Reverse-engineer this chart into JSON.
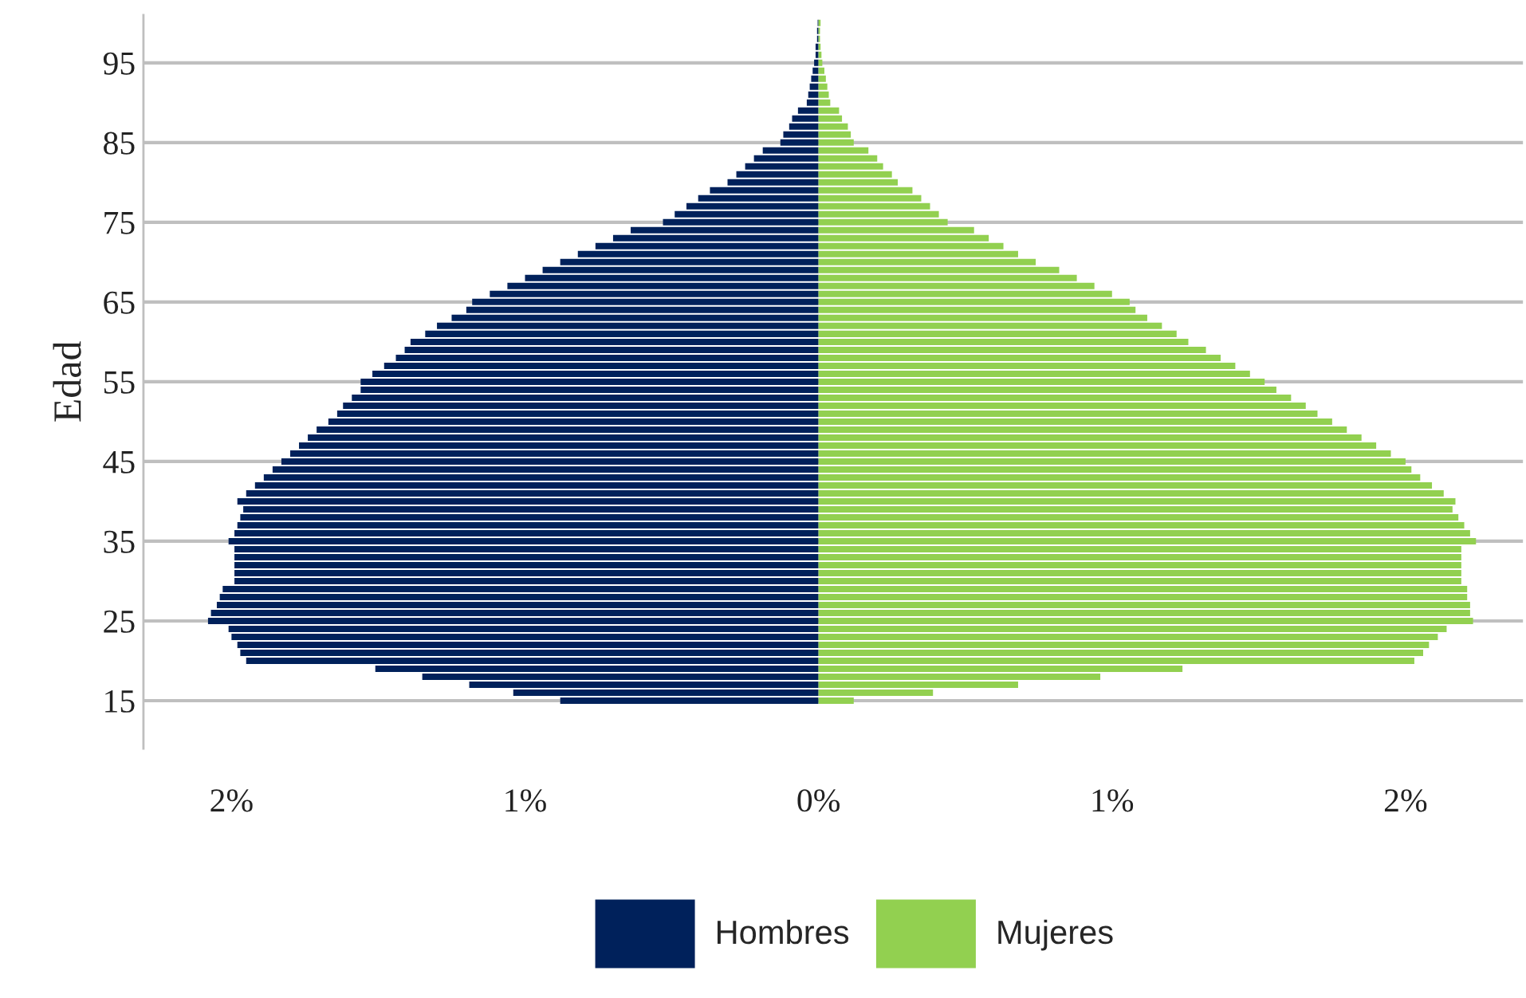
{
  "chart_data": {
    "type": "bar",
    "orientation": "horizontal",
    "ylabel": "Edad",
    "x": [
      15,
      16,
      17,
      18,
      19,
      20,
      21,
      22,
      23,
      24,
      25,
      26,
      27,
      28,
      29,
      30,
      31,
      32,
      33,
      34,
      35,
      36,
      37,
      38,
      39,
      40,
      41,
      42,
      43,
      44,
      45,
      46,
      47,
      48,
      49,
      50,
      51,
      52,
      53,
      54,
      55,
      56,
      57,
      58,
      59,
      60,
      61,
      62,
      63,
      64,
      65,
      66,
      67,
      68,
      69,
      70,
      71,
      72,
      73,
      74,
      75,
      76,
      77,
      78,
      79,
      80,
      81,
      82,
      83,
      84,
      85,
      86,
      87,
      88,
      89,
      90,
      91,
      92,
      93,
      94,
      95,
      96,
      97,
      98,
      99,
      100
    ],
    "series": [
      {
        "name": "Hombres",
        "color": "#00215b",
        "values": [
          -0.88,
          -1.04,
          -1.19,
          -1.35,
          -1.51,
          -1.95,
          -1.97,
          -1.98,
          -2.0,
          -2.01,
          -2.08,
          -2.07,
          -2.05,
          -2.04,
          -2.03,
          -1.99,
          -1.99,
          -1.99,
          -1.99,
          -1.99,
          -2.01,
          -1.99,
          -1.98,
          -1.97,
          -1.96,
          -1.98,
          -1.95,
          -1.92,
          -1.89,
          -1.86,
          -1.83,
          -1.8,
          -1.77,
          -1.74,
          -1.71,
          -1.67,
          -1.64,
          -1.62,
          -1.59,
          -1.56,
          -1.56,
          -1.52,
          -1.48,
          -1.44,
          -1.41,
          -1.39,
          -1.34,
          -1.3,
          -1.25,
          -1.2,
          -1.18,
          -1.12,
          -1.06,
          -1.0,
          -0.94,
          -0.88,
          -0.82,
          -0.76,
          -0.7,
          -0.64,
          -0.53,
          -0.49,
          -0.45,
          -0.41,
          -0.37,
          -0.31,
          -0.28,
          -0.25,
          -0.22,
          -0.19,
          -0.13,
          -0.12,
          -0.1,
          -0.09,
          -0.07,
          -0.04,
          -0.035,
          -0.03,
          -0.025,
          -0.02,
          -0.015,
          -0.01,
          -0.01,
          -0.005,
          -0.005,
          -0.003
        ]
      },
      {
        "name": "Mujeres",
        "color": "#92d050",
        "values": [
          0.12,
          0.39,
          0.68,
          0.96,
          1.24,
          2.03,
          2.06,
          2.08,
          2.11,
          2.14,
          2.23,
          2.22,
          2.22,
          2.21,
          2.21,
          2.19,
          2.19,
          2.19,
          2.19,
          2.19,
          2.24,
          2.22,
          2.2,
          2.18,
          2.16,
          2.17,
          2.13,
          2.09,
          2.05,
          2.02,
          2.0,
          1.95,
          1.9,
          1.85,
          1.8,
          1.75,
          1.7,
          1.66,
          1.61,
          1.56,
          1.52,
          1.47,
          1.42,
          1.37,
          1.32,
          1.26,
          1.22,
          1.17,
          1.12,
          1.08,
          1.06,
          1.0,
          0.94,
          0.88,
          0.82,
          0.74,
          0.68,
          0.63,
          0.58,
          0.53,
          0.44,
          0.41,
          0.38,
          0.35,
          0.32,
          0.27,
          0.25,
          0.22,
          0.2,
          0.17,
          0.12,
          0.11,
          0.1,
          0.08,
          0.07,
          0.04,
          0.035,
          0.03,
          0.025,
          0.02,
          0.013,
          0.01,
          0.007,
          0.005,
          0.005,
          0.007
        ]
      }
    ],
    "xlim": [
      -2.3,
      2.4
    ],
    "xticks": [
      {
        "value": -2,
        "label": "2%"
      },
      {
        "value": -1,
        "label": "1%"
      },
      {
        "value": 0,
        "label": "0%"
      },
      {
        "value": 1,
        "label": "1%"
      },
      {
        "value": 2,
        "label": "2%"
      }
    ],
    "ylim": [
      9,
      101
    ],
    "yticks": [
      15,
      25,
      35,
      45,
      55,
      65,
      75,
      85,
      95
    ],
    "grid": "y",
    "stacked": true,
    "legend": "bottom"
  }
}
